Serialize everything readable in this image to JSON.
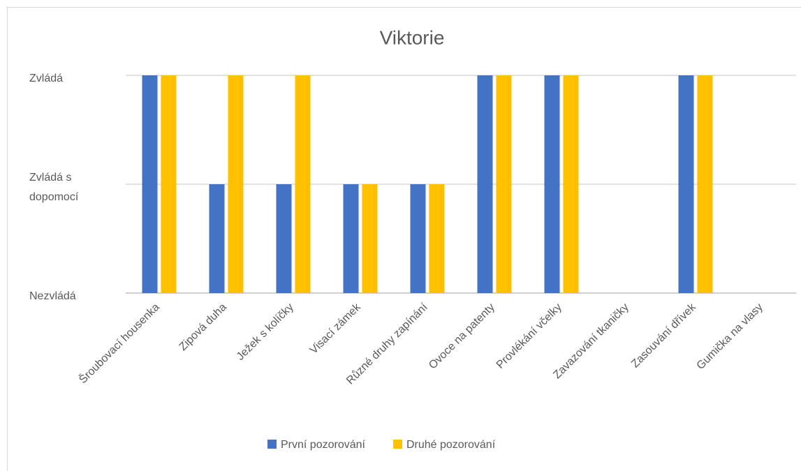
{
  "chart_data": {
    "type": "bar",
    "title": "Viktorie",
    "categories": [
      "Šroubovací housenka",
      "Zipová duha",
      "Ježek s kolíčky",
      "Visací zámek",
      "Různé druhy zapínání",
      "Ovoce na patenty",
      "Provlékání včelky",
      "Zavazování tkaničky",
      "Zasouvání dřívek",
      "Gumička na vlasy"
    ],
    "series": [
      {
        "name": "První pozorování",
        "color": "#4472c4",
        "values": [
          2,
          1,
          1,
          1,
          1,
          2,
          2,
          0,
          2,
          0
        ]
      },
      {
        "name": "Druhé pozorování",
        "color": "#ffc000",
        "values": [
          2,
          2,
          2,
          1,
          1,
          2,
          2,
          0,
          2,
          0
        ]
      }
    ],
    "ylim": [
      0,
      2
    ],
    "yticks": [
      {
        "value": 0,
        "label": "Nezvládá"
      },
      {
        "value": 1,
        "label": "Zvládá s dopomocí"
      },
      {
        "value": 2,
        "label": "Zvládá"
      }
    ],
    "grid": true,
    "legend": "bottom"
  }
}
